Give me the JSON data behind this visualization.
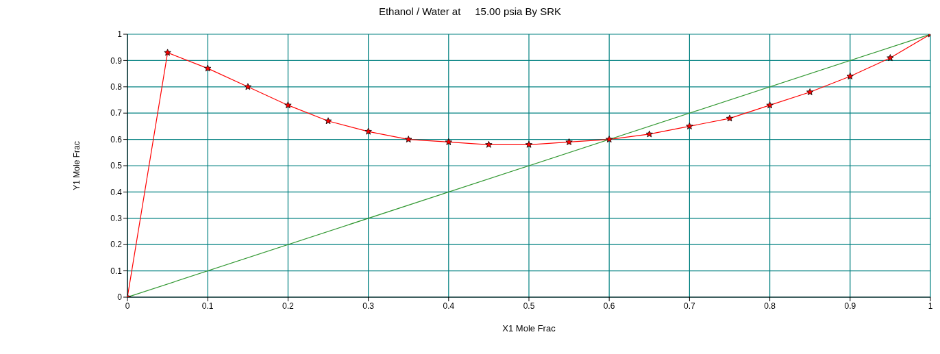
{
  "chart_data": {
    "type": "line",
    "title": "Ethanol / Water at     15.00 psia By SRK",
    "xlabel": "X1 Mole Frac",
    "ylabel": "Y1 Mole Frac",
    "xlim": [
      0,
      1
    ],
    "xticks": [
      0,
      0.1,
      0.2,
      0.3,
      0.4,
      0.5,
      0.6,
      0.7,
      0.8,
      0.9,
      1
    ],
    "ylim": [
      0,
      1
    ],
    "yticks": [
      0,
      0.1,
      0.2,
      0.3,
      0.4,
      0.5,
      0.6,
      0.7,
      0.8,
      0.9,
      1
    ],
    "grid": true,
    "series": [
      {
        "color": "#ff0000",
        "marker": "star",
        "x": [
          0,
          0.05,
          0.1,
          0.15,
          0.2,
          0.25,
          0.3,
          0.35,
          0.4,
          0.45,
          0.5,
          0.55,
          0.6,
          0.65,
          0.7,
          0.75,
          0.8,
          0.85,
          0.9,
          0.95,
          1
        ],
        "values": [
          0,
          0.93,
          0.87,
          0.8,
          0.73,
          0.67,
          0.63,
          0.6,
          0.59,
          0.58,
          0.58,
          0.59,
          0.6,
          0.62,
          0.65,
          0.68,
          0.73,
          0.78,
          0.84,
          0.91,
          1
        ]
      },
      {
        "color": "#339933",
        "x": [
          0,
          1
        ],
        "values": [
          0,
          1
        ]
      }
    ]
  }
}
